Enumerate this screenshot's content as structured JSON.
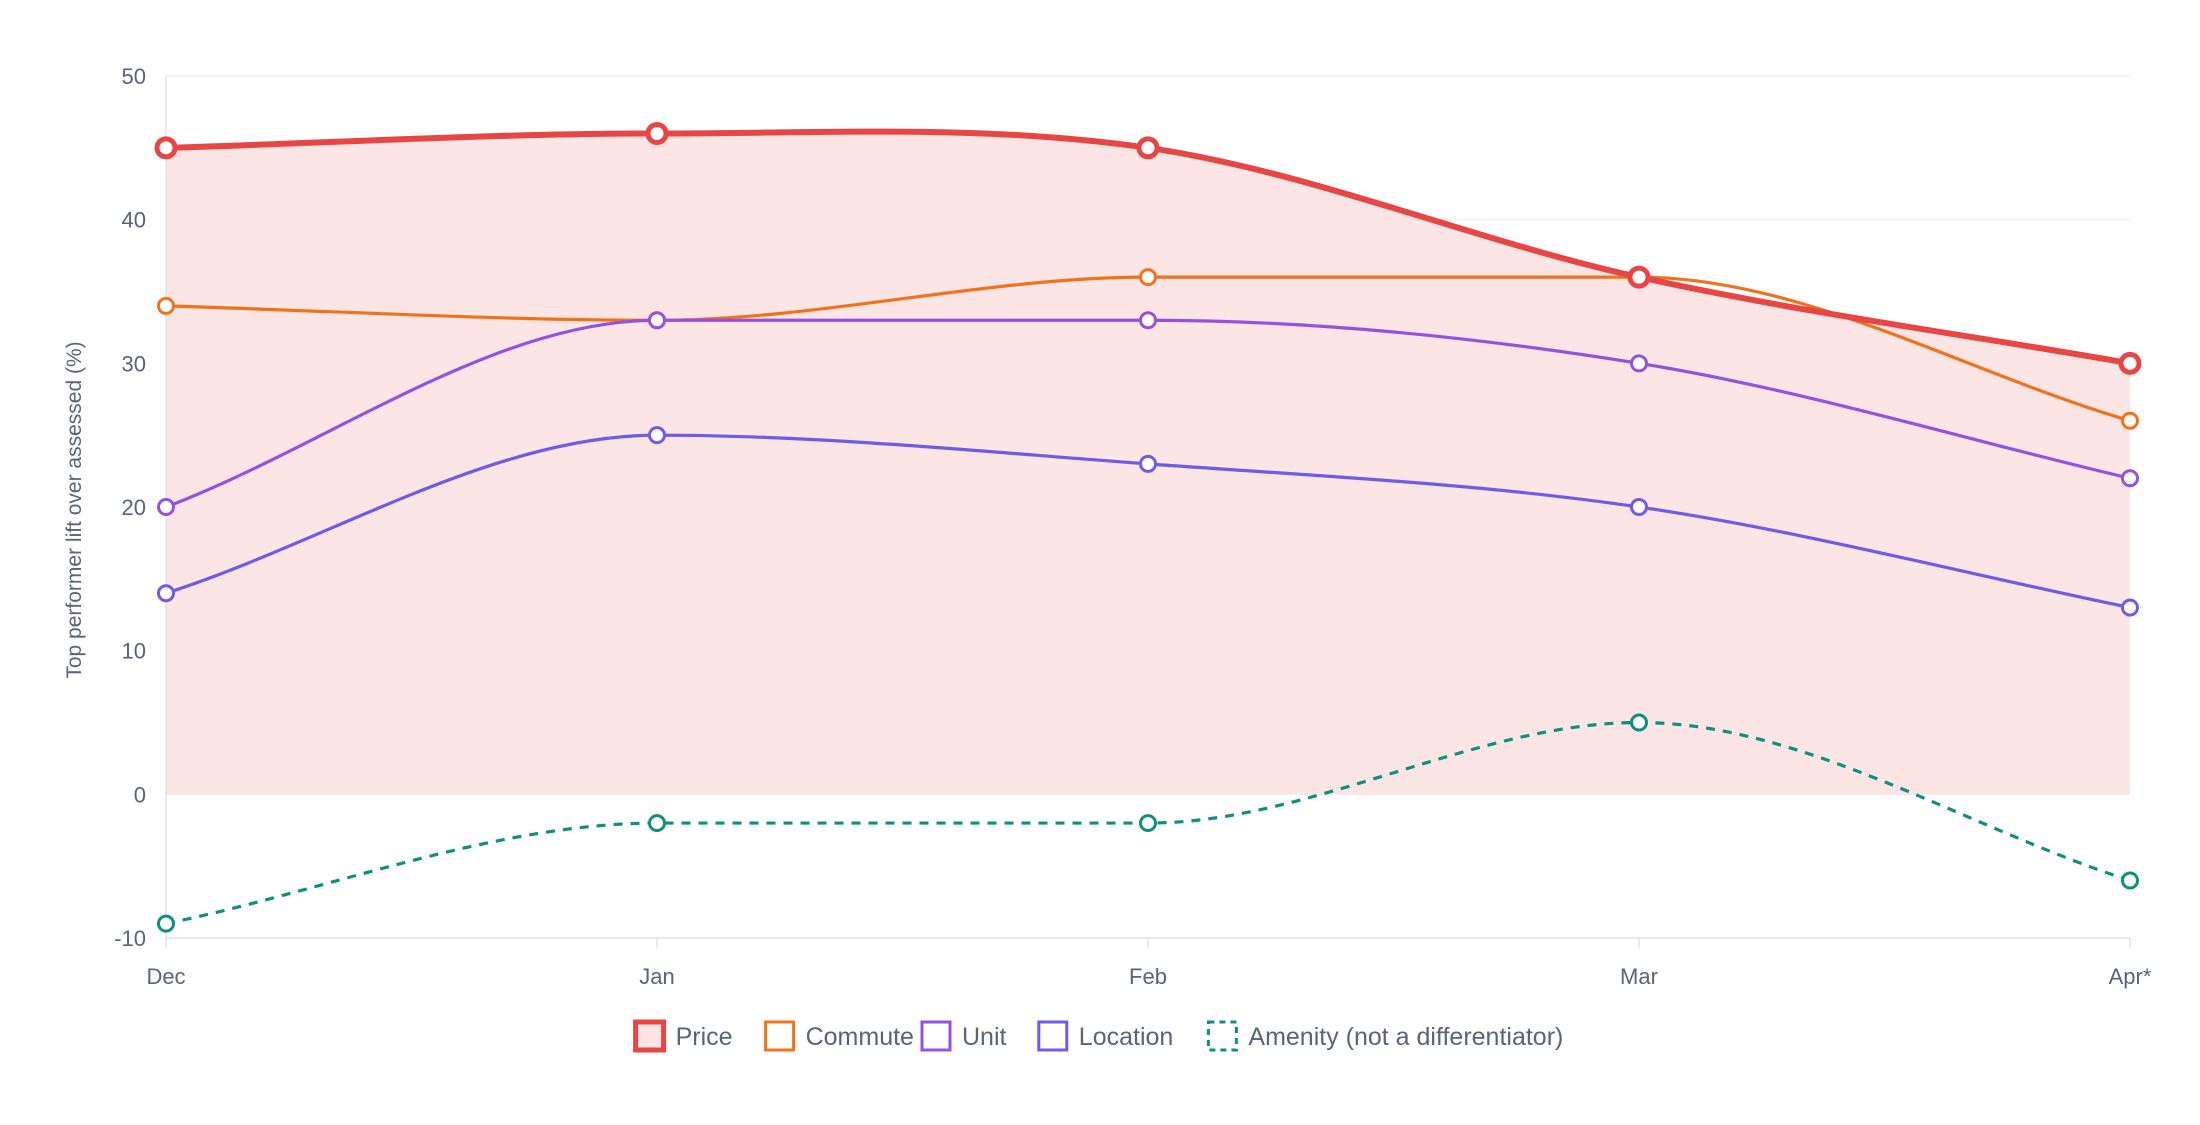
{
  "chart_data": {
    "type": "line",
    "title": "",
    "xlabel": "",
    "ylabel": "Top performer lift over assessed (%)",
    "categories": [
      "Dec",
      "Jan",
      "Feb",
      "Mar",
      "Apr*"
    ],
    "ylim": [
      -10,
      50
    ],
    "yticks": [
      -10,
      0,
      10,
      20,
      30,
      40,
      50
    ],
    "grid": true,
    "legend_position": "bottom-center",
    "series": [
      {
        "name": "Price",
        "values": [
          45,
          46,
          45,
          36,
          30
        ],
        "color": "#e84545",
        "filled": true,
        "fill_color": "#fbe5e5",
        "emphasis": true,
        "dashed": false
      },
      {
        "name": "Commute",
        "values": [
          34,
          33,
          36,
          36,
          26
        ],
        "color": "#f0721c",
        "filled": false,
        "emphasis": false,
        "dashed": false
      },
      {
        "name": "Unit",
        "values": [
          20,
          33,
          33,
          30,
          22
        ],
        "color": "#9352e0",
        "filled": false,
        "emphasis": false,
        "dashed": false
      },
      {
        "name": "Location",
        "values": [
          14,
          25,
          23,
          20,
          13
        ],
        "color": "#6c5ce7",
        "filled": false,
        "emphasis": false,
        "dashed": false
      },
      {
        "name": "Amenity (not a differentiator)",
        "values": [
          -9,
          -2,
          -2,
          5,
          -6
        ],
        "color": "#0f8f80",
        "filled": false,
        "emphasis": false,
        "dashed": true
      }
    ]
  }
}
